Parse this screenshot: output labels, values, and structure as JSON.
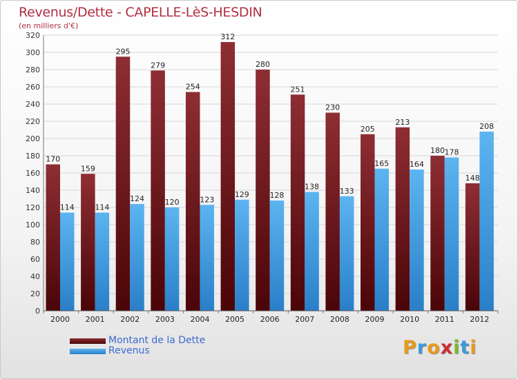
{
  "chart_data": {
    "type": "bar",
    "title": "Revenus/Dette - CAPELLE-LèS-HESDIN",
    "subtitle": "(en milliers d'€)",
    "categories": [
      "2000",
      "2001",
      "2002",
      "2003",
      "2004",
      "2005",
      "2006",
      "2007",
      "2008",
      "2009",
      "2010",
      "2011",
      "2012"
    ],
    "series": [
      {
        "name": "Montant de la Dette",
        "values": [
          170,
          159,
          295,
          279,
          254,
          312,
          280,
          251,
          230,
          205,
          213,
          180,
          148
        ],
        "color": "#7a1a20"
      },
      {
        "name": "Revenus",
        "values": [
          114,
          114,
          124,
          120,
          123,
          129,
          128,
          138,
          133,
          165,
          164,
          178,
          208
        ],
        "color": "#4aa3e8"
      }
    ],
    "ylim": [
      0,
      320
    ],
    "yticks": [
      0,
      20,
      40,
      60,
      80,
      100,
      120,
      140,
      160,
      180,
      200,
      220,
      240,
      260,
      280,
      300,
      320
    ],
    "grid": true,
    "legend": "bottom-left"
  },
  "brand": {
    "letters": [
      "P",
      "r",
      "o",
      "x",
      "i",
      "t",
      "i"
    ],
    "colors": [
      "#e89a1a",
      "#3a9ad8",
      "#e89a1a",
      "#c83030",
      "#7ab830",
      "#3a9ad8",
      "#e89a1a"
    ]
  }
}
